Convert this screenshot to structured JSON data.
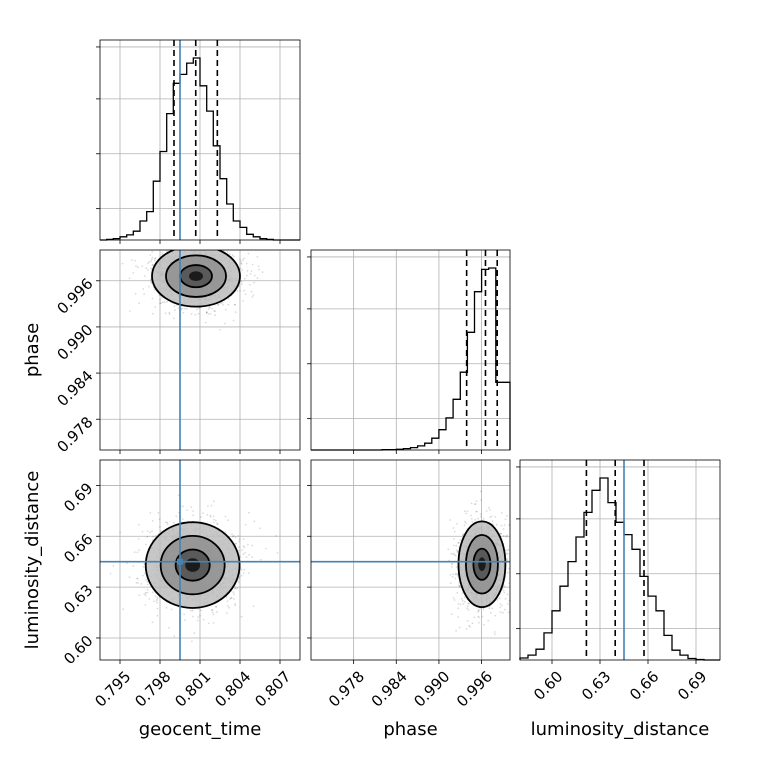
{
  "chart_data": {
    "type": "corner",
    "parameters": [
      "geocent_time",
      "phase",
      "luminosity_distance"
    ],
    "axis_labels": {
      "x": [
        "geocent_time",
        "phase",
        "luminosity_distance"
      ],
      "y": [
        "",
        "phase",
        "luminosity_distance"
      ]
    },
    "truths": {
      "geocent_time": 0.7995,
      "phase": null,
      "luminosity_distance": 0.645
    },
    "truth_color": "#4682b4",
    "grid": true,
    "geocent_time": {
      "range": [
        0.7935,
        0.8085
      ],
      "ticks": [
        0.795,
        0.798,
        0.801,
        0.804,
        0.807
      ],
      "tick_labels": [
        "0.795",
        "0.798",
        "0.801",
        "0.804",
        "0.807"
      ],
      "quantiles": [
        0.79905,
        0.80068,
        0.8023
      ],
      "hist_edges": [
        0.7935,
        0.794,
        0.7945,
        0.795,
        0.7955,
        0.796,
        0.7965,
        0.797,
        0.7975,
        0.798,
        0.7985,
        0.799,
        0.7995,
        0.8,
        0.8005,
        0.801,
        0.8015,
        0.802,
        0.8025,
        0.803,
        0.8035,
        0.804,
        0.8045,
        0.805,
        0.8055,
        0.806,
        0.8065,
        0.807,
        0.8075,
        0.808,
        0.8085
      ],
      "hist_counts": [
        0,
        1,
        2,
        5,
        8,
        14,
        30,
        45,
        93,
        140,
        200,
        248,
        262,
        280,
        288,
        244,
        204,
        149,
        97,
        57,
        30,
        20,
        9,
        5,
        2,
        1,
        0,
        0,
        0,
        0
      ]
    },
    "phase": {
      "range": [
        0.972,
        1.0
      ],
      "ticks": [
        0.978,
        0.984,
        0.99,
        0.996
      ],
      "tick_labels": [
        "0.978",
        "0.984",
        "0.990",
        "0.996"
      ],
      "quantiles": [
        0.9939,
        0.99655,
        0.9982
      ],
      "hist_edges": [
        0.972,
        0.973,
        0.974,
        0.975,
        0.976,
        0.977,
        0.978,
        0.979,
        0.98,
        0.981,
        0.982,
        0.983,
        0.984,
        0.985,
        0.986,
        0.987,
        0.988,
        0.989,
        0.99,
        0.991,
        0.992,
        0.993,
        0.994,
        0.995,
        0.996,
        0.997,
        0.998,
        0.999,
        1.0
      ],
      "hist_counts": [
        0,
        0,
        0,
        0,
        0,
        0,
        0,
        0,
        0,
        0,
        1,
        1,
        2,
        4,
        7,
        12,
        20,
        35,
        60,
        95,
        150,
        230,
        348,
        468,
        534,
        538,
        200,
        200
      ]
    },
    "luminosity_distance": {
      "range": [
        0.58,
        0.705
      ],
      "ticks": [
        0.6,
        0.63,
        0.66,
        0.69
      ],
      "tick_labels": [
        "0.60",
        "0.63",
        "0.66",
        "0.69"
      ],
      "quantiles": [
        0.6215,
        0.6395,
        0.6575
      ],
      "hist_edges": [
        0.58,
        0.585,
        0.59,
        0.595,
        0.6,
        0.605,
        0.61,
        0.615,
        0.62,
        0.625,
        0.63,
        0.635,
        0.64,
        0.645,
        0.65,
        0.655,
        0.66,
        0.665,
        0.67,
        0.675,
        0.68,
        0.685,
        0.69,
        0.695,
        0.7,
        0.705
      ],
      "hist_counts": [
        4,
        10,
        22,
        55,
        100,
        150,
        200,
        250,
        300,
        345,
        370,
        320,
        280,
        255,
        225,
        170,
        130,
        100,
        50,
        20,
        10,
        3,
        1,
        0,
        0
      ]
    },
    "density_2d": [
      {
        "x": "geocent_time",
        "y": "phase",
        "center": [
          0.8007,
          0.9966
        ],
        "spread": [
          0.0015,
          0.0018
        ],
        "contour_levels": [
          [
            0.8,
            0.0021
          ],
          [
            1.5,
            0.0029
          ],
          [
            2.2,
            0.0038
          ]
        ],
        "y_range": [
          0.974,
          1.0
        ]
      },
      {
        "x": "geocent_time",
        "y": "luminosity_distance",
        "center": [
          0.80045,
          0.643
        ],
        "spread": [
          0.0016,
          0.0115
        ],
        "contour_levels": [
          [
            0.8,
            0.0098
          ],
          [
            1.5,
            0.0168
          ],
          [
            2.2,
            0.0245
          ]
        ],
        "y_range": [
          0.587,
          0.705
        ]
      },
      {
        "x": "phase",
        "y": "luminosity_distance",
        "center": [
          0.99605,
          0.6435
        ],
        "spread": [
          0.0015,
          0.0115
        ],
        "contour_levels": [
          [
            0.8,
            0.0098
          ],
          [
            1.5,
            0.0168
          ],
          [
            2.2,
            0.0245
          ]
        ],
        "y_range": [
          0.587,
          0.705
        ]
      }
    ],
    "x_tick_labels": {
      "geocent_time": [
        "0.795",
        "0.798",
        "0.801",
        "0.804",
        "0.807"
      ],
      "phase": [
        "0.978",
        "0.984",
        "0.990",
        "0.996"
      ],
      "luminosity_distance": [
        "0.60",
        "0.63",
        "0.66",
        "0.69"
      ]
    },
    "y_tick_labels": {
      "phase": [
        "0.996",
        "0.990",
        "0.984",
        "0.978"
      ],
      "luminosity_distance": [
        "0.69",
        "0.66",
        "0.63",
        "0.60"
      ]
    }
  }
}
